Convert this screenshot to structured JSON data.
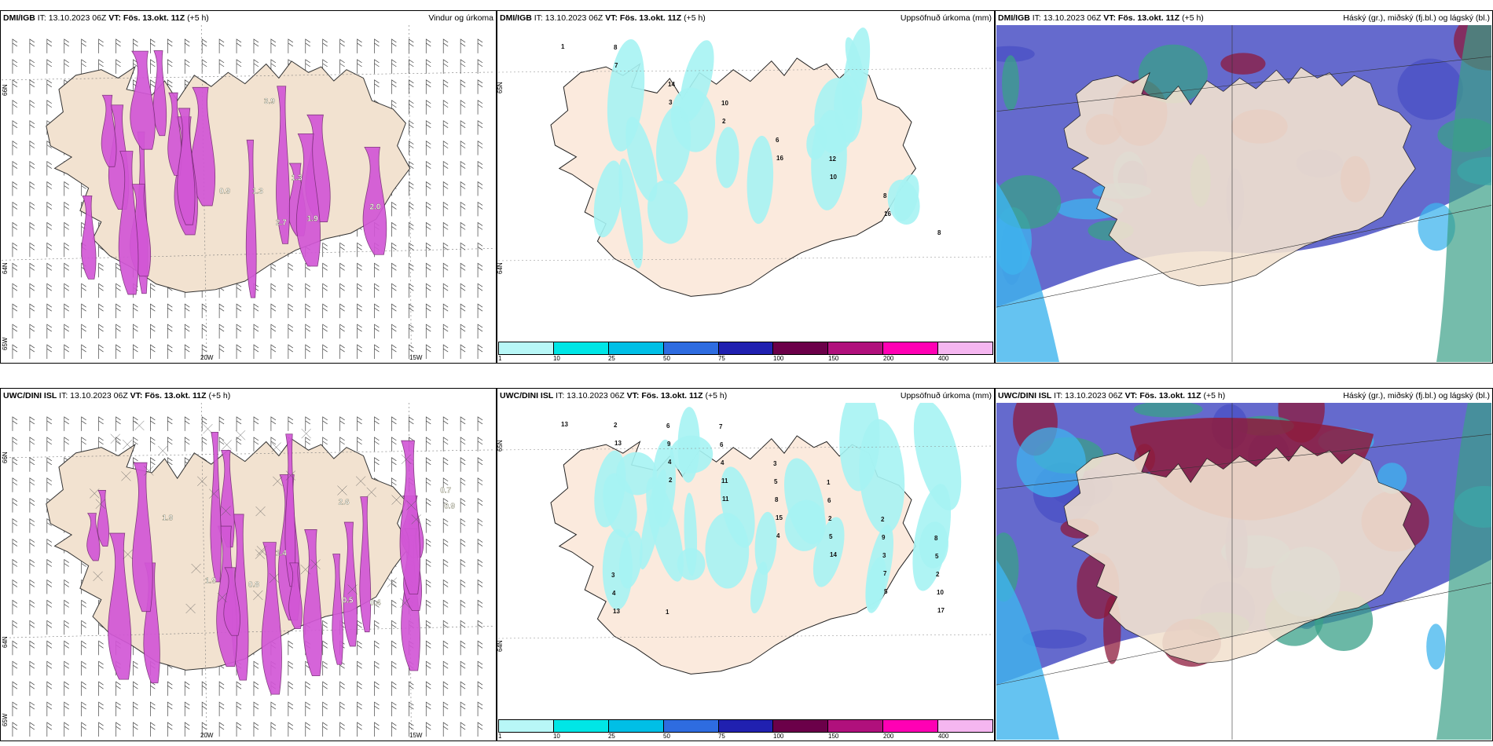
{
  "rows": [
    {
      "wind": {
        "source": "DMI/IGB",
        "it": "IT: 13.10.2023 06Z",
        "vt": "VT: Fös. 13.okt. 11Z",
        "lead": "(+5 h)",
        "title": "Vindur og úrkoma",
        "lat_labels": [
          "66N",
          "64N",
          "65W"
        ],
        "lon_labels": [
          "20W",
          "15W"
        ],
        "values": [
          "3.9",
          "1.3",
          "2.0",
          "0.9",
          "1.3",
          "1.9",
          "2.7"
        ]
      },
      "precip": {
        "source": "DMI/IGB",
        "it": "IT: 13.10.2023 06Z",
        "vt": "VT: Fös. 13.okt. 11Z",
        "lead": "(+5 h)",
        "title": "Uppsöfnuð úrkoma (mm)",
        "lat_labels": [
          "65N",
          "64N"
        ],
        "values": [
          "1",
          "3",
          "16",
          "16",
          "7",
          "2",
          "10",
          "8",
          "14",
          "6",
          "8",
          "8",
          "10",
          "12"
        ]
      },
      "cloud": {
        "source": "DMI/IGB",
        "it": "IT: 13.10.2023 06Z",
        "vt": "VT: Fös. 13.okt. 11Z",
        "lead": "(+5 h)",
        "title": "Háský (gr.), miðský (fj.bl.) og lágský (bl.)"
      }
    },
    {
      "wind": {
        "source": "UWC/DINI ISL",
        "it": "IT: 13.10.2023 06Z",
        "vt": "VT: Fös. 13.okt. 11Z",
        "lead": "(+5 h)",
        "title": "",
        "lat_labels": [
          "66N",
          "64N",
          "65W"
        ],
        "lon_labels": [
          "20W",
          "15W"
        ],
        "values": [
          "0.7",
          "0.9",
          "1.9",
          "2.6",
          "0.5",
          "0.4",
          "1.4",
          "0.8",
          "1.9"
        ]
      },
      "precip": {
        "source": "UWC/DINI ISL",
        "it": "IT: 13.10.2023 06Z",
        "vt": "VT: Fös. 13.okt. 11Z",
        "lead": "(+5 h)",
        "title": "Uppsöfnuð úrkoma (mm)",
        "lat_labels": [
          "65N",
          "64N"
        ],
        "values": [
          "13",
          "2",
          "4",
          "5",
          "13",
          "11",
          "14",
          "17",
          "4",
          "15",
          "7",
          "2",
          "11",
          "5",
          "10",
          "9",
          "8",
          "3",
          "13",
          "4",
          "2",
          "2",
          "6",
          "5",
          "9",
          "4",
          "6",
          "6",
          "5",
          "1",
          "3",
          "2",
          "3",
          "7",
          "1",
          "8"
        ]
      },
      "cloud": {
        "source": "UWC/DINI ISL",
        "it": "IT: 13.10.2023 06Z",
        "vt": "VT: Fös. 13.okt. 11Z",
        "lead": "(+5 h)",
        "title": "Háský (gr.), miðský (fj.bl.) og lágský (bl.)"
      }
    }
  ],
  "colorbar": {
    "ticks": [
      "1",
      "10",
      "25",
      "50",
      "75",
      "100",
      "150",
      "200",
      "400"
    ],
    "colors": [
      "#b8f7f7",
      "#00e6e6",
      "#00bfe6",
      "#2e6ce0",
      "#2020b0",
      "#6b0049",
      "#b0107c",
      "#ff00b4",
      "#f5b6f0"
    ]
  },
  "palette": {
    "land": "#f2e2d0",
    "precip_land": "#fbeadd",
    "precip_light": "#a6f3f3",
    "wind_magenta": "#d257d6",
    "wind_dark": "#7a2e78",
    "cloud_blue": "#4a50c4",
    "cloud_red": "#8e1b3c",
    "cloud_green": "#3aa088",
    "cloud_cyan": "#3fb4ee"
  }
}
